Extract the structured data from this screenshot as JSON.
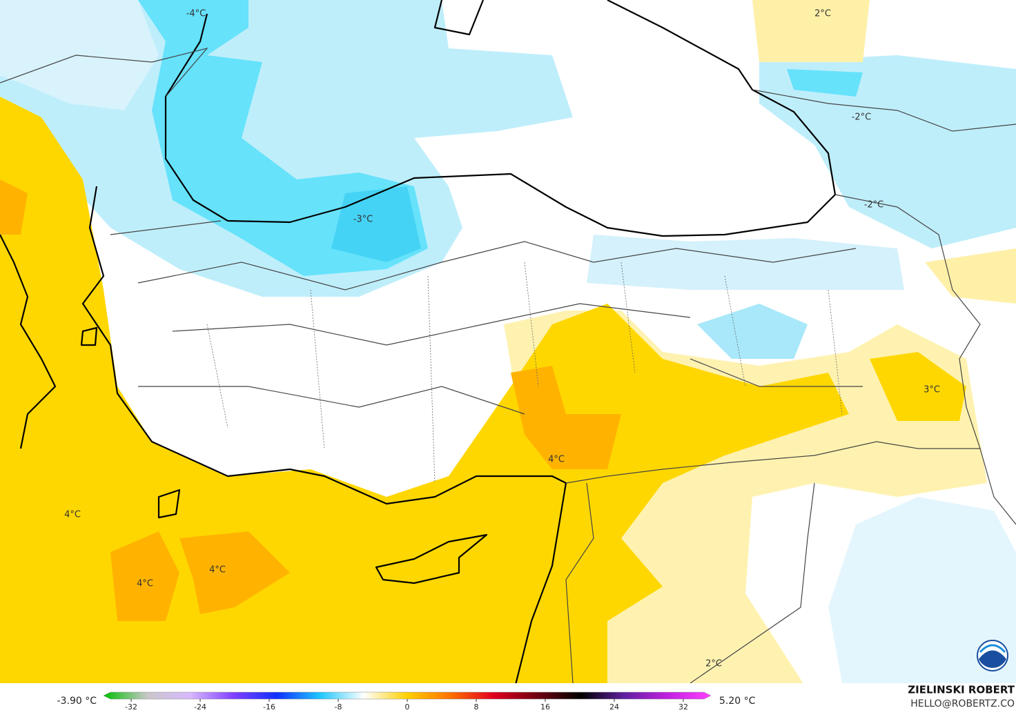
{
  "map": {
    "labels": [
      "-4°C",
      "2°C",
      "-2°C",
      "-3°C",
      "-2°C",
      "3°C",
      "4°C",
      "4°C",
      "4°C",
      "4°C",
      "2°C"
    ],
    "colorbar": {
      "min_label": "-3.90 °C",
      "max_label": "5.20 °C",
      "lim": [
        -35.2,
        35.2
      ],
      "ticks": [
        -32,
        -24,
        -16,
        -8,
        0,
        8,
        16,
        24,
        32
      ],
      "colors": [
        "#00c000",
        "#c8c8c8",
        "#d8b8ff",
        "#8040ff",
        "#1030ff",
        "#20c8ff",
        "#ffffff",
        "#ffd000",
        "#ff7000",
        "#e00020",
        "#700010",
        "#000000",
        "#6020a0",
        "#c020e0",
        "#ff40ff"
      ]
    },
    "credit": {
      "author": "ZIELINSKI ROBERT",
      "contact": "HELLO@ROBERTZ.CO"
    }
  }
}
